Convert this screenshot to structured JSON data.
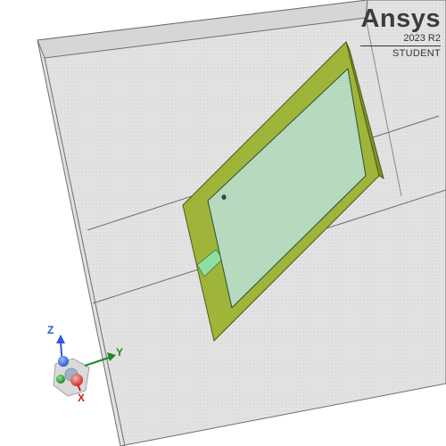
{
  "logo": {
    "brand": "Ansys",
    "version": "2023 R2",
    "edition": "STUDENT"
  },
  "triad": {
    "x_label": "X",
    "y_label": "Y",
    "z_label": "Z",
    "x_color": "#cc1f1f",
    "y_color": "#1f8a1f",
    "z_color": "#2a5bd7"
  },
  "model": {
    "substrate_color": "#9fb53a",
    "patch_color": "#b9dcc2",
    "airbox_color": "#e4e4e4"
  }
}
